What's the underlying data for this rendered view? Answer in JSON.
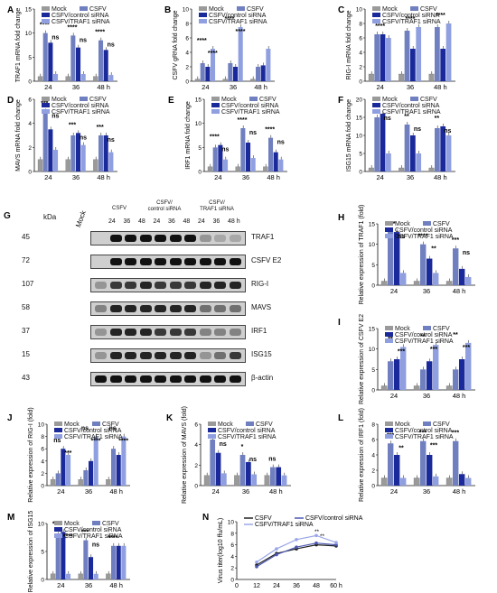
{
  "colors": {
    "mock": "#9a9a9a",
    "csfv": "#6f7fbf",
    "control_sirna": "#1b2a9a",
    "traf1_sirna": "#8f9fe0",
    "line_csfv": "#222222",
    "line_control": "#4b58b0",
    "line_traf1": "#9aa7e8"
  },
  "legend": [
    "Mock",
    "CSFV",
    "CSFV/control siRNA",
    "CSFV/TRAF1 siRNA"
  ],
  "blot": {
    "letter": "G",
    "kda_label": "kDa",
    "mock_label": "Mock",
    "groups": [
      "CSFV",
      "CSFV/\ncontrol siRNA",
      "CSFV/\nTRAF1 siRNA"
    ],
    "times": [
      "24",
      "36",
      "48",
      "24",
      "36",
      "48",
      "24",
      "36",
      "48 h"
    ],
    "rows": [
      {
        "mw": "45",
        "protein": "TRAF1"
      },
      {
        "mw": "72",
        "protein": "CSFV E2"
      },
      {
        "mw": "107",
        "protein": "RIG-I"
      },
      {
        "mw": "58",
        "protein": "MAVS"
      },
      {
        "mw": "37",
        "protein": "IRF1"
      },
      {
        "mw": "15",
        "protein": "ISG15"
      },
      {
        "mw": "43",
        "protein": "β-actin"
      }
    ]
  },
  "chart_data": [
    {
      "panel": "A",
      "type": "bar",
      "ylabel": "TRAF1 mRNA fold change",
      "ylim": [
        0,
        15
      ],
      "ticks": [
        0,
        5,
        10,
        15
      ],
      "categories": [
        "24",
        "36",
        "48 h"
      ],
      "series": [
        {
          "name": "Mock",
          "values": [
            1,
            1,
            1
          ]
        },
        {
          "name": "CSFV",
          "values": [
            10,
            9.5,
            8.5
          ]
        },
        {
          "name": "CSFV/control siRNA",
          "values": [
            8,
            7,
            6.5
          ]
        },
        {
          "name": "CSFV/TRAF1 siRNA",
          "values": [
            1.5,
            1.5,
            1.3
          ]
        }
      ],
      "sig": [
        "****",
        "ns",
        "****",
        "ns",
        "****",
        "ns"
      ]
    },
    {
      "panel": "B",
      "type": "bar",
      "ylabel": "CSFV gRNA fold change",
      "ylim": [
        0,
        10
      ],
      "ticks": [
        0,
        2,
        4,
        6,
        8,
        10
      ],
      "categories": [
        "24",
        "36",
        "48 h"
      ],
      "series": [
        {
          "name": "Mock",
          "values": [
            0.3,
            0.3,
            0.3
          ]
        },
        {
          "name": "CSFV",
          "values": [
            2.5,
            2.5,
            2
          ]
        },
        {
          "name": "CSFV/control siRNA",
          "values": [
            2,
            2,
            2.2
          ]
        },
        {
          "name": "CSFV/TRAF1 siRNA",
          "values": [
            4.5,
            7.5,
            4.5
          ]
        }
      ],
      "sig": [
        "****",
        "****",
        "****",
        "****"
      ]
    },
    {
      "panel": "C",
      "type": "bar",
      "ylabel": "RIG-I mRNA fold change",
      "ylim": [
        0,
        10
      ],
      "ticks": [
        0,
        2,
        4,
        6,
        8,
        10
      ],
      "categories": [
        "24",
        "36",
        "48 h"
      ],
      "series": [
        {
          "name": "Mock",
          "values": [
            1,
            1,
            1
          ]
        },
        {
          "name": "CSFV",
          "values": [
            6.5,
            7,
            7.5
          ]
        },
        {
          "name": "CSFV/control siRNA",
          "values": [
            6.5,
            4.5,
            4.5
          ]
        },
        {
          "name": "CSFV/TRAF1 siRNA",
          "values": [
            6,
            7.5,
            8
          ]
        }
      ],
      "sig": [
        "****",
        "****",
        "****"
      ]
    },
    {
      "panel": "D",
      "type": "bar",
      "ylabel": "MAVS mRNA fold change",
      "ylim": [
        0,
        6
      ],
      "ticks": [
        0,
        2,
        4,
        6
      ],
      "categories": [
        "24",
        "36",
        "48 h"
      ],
      "series": [
        {
          "name": "Mock",
          "values": [
            1,
            1,
            1
          ]
        },
        {
          "name": "CSFV",
          "values": [
            5,
            3,
            3
          ]
        },
        {
          "name": "CSFV/control siRNA",
          "values": [
            3.5,
            3.2,
            3
          ]
        },
        {
          "name": "CSFV/TRAF1 siRNA",
          "values": [
            1.8,
            2.2,
            1.6
          ]
        }
      ],
      "sig": [
        "***",
        "ns",
        "***",
        "ns",
        "***",
        "ns"
      ]
    },
    {
      "panel": "E",
      "type": "bar",
      "ylabel": "IRF1 mRNA fold change",
      "ylim": [
        0,
        15
      ],
      "ticks": [
        0,
        5,
        10,
        15
      ],
      "categories": [
        "24",
        "36",
        "48 h"
      ],
      "series": [
        {
          "name": "Mock",
          "values": [
            1,
            1,
            1
          ]
        },
        {
          "name": "CSFV",
          "values": [
            5,
            9,
            7
          ]
        },
        {
          "name": "CSFV/control siRNA",
          "values": [
            5.5,
            6,
            4
          ]
        },
        {
          "name": "CSFV/TRAF1 siRNA",
          "values": [
            2.5,
            2.8,
            2.5
          ]
        }
      ],
      "sig": [
        "****",
        "ns",
        "****",
        "ns",
        "****",
        "ns"
      ]
    },
    {
      "panel": "F",
      "type": "bar",
      "ylabel": "ISG15 mRNA fold change",
      "ylim": [
        0,
        20
      ],
      "ticks": [
        0,
        5,
        10,
        15,
        20
      ],
      "categories": [
        "24",
        "36",
        "48 h"
      ],
      "series": [
        {
          "name": "Mock",
          "values": [
            1,
            1,
            1
          ]
        },
        {
          "name": "CSFV",
          "values": [
            15,
            13,
            12
          ]
        },
        {
          "name": "CSFV/control siRNA",
          "values": [
            16,
            10,
            12.5
          ]
        },
        {
          "name": "CSFV/TRAF1 siRNA",
          "values": [
            5,
            5,
            10
          ]
        }
      ],
      "sig": [
        "***",
        "ns",
        "**",
        "ns",
        "**",
        "ns"
      ]
    },
    {
      "panel": "H",
      "type": "bar",
      "ylabel": "Relative expression of TRAF1 (fold)",
      "ylim": [
        0,
        15
      ],
      "ticks": [
        0,
        5,
        10,
        15
      ],
      "categories": [
        "24",
        "36",
        "48 h"
      ],
      "series": [
        {
          "name": "Mock",
          "values": [
            1,
            1,
            1
          ]
        },
        {
          "name": "CSFV",
          "values": [
            13,
            10,
            9
          ]
        },
        {
          "name": "CSFV/control siRNA",
          "values": [
            13,
            6.5,
            4
          ]
        },
        {
          "name": "CSFV/TRAF1 siRNA",
          "values": [
            3,
            3,
            2
          ]
        }
      ],
      "sig": [
        "****",
        "ns",
        "****",
        "**",
        "***",
        "ns"
      ]
    },
    {
      "panel": "I",
      "type": "bar",
      "ylabel": "Relative expression of CSFV E2",
      "ylim": [
        0,
        15
      ],
      "ticks": [
        0,
        5,
        10,
        15
      ],
      "categories": [
        "24",
        "36",
        "48 h"
      ],
      "series": [
        {
          "name": "Mock",
          "values": [
            1,
            1,
            1
          ]
        },
        {
          "name": "CSFV",
          "values": [
            7,
            5,
            5
          ]
        },
        {
          "name": "CSFV/control siRNA",
          "values": [
            7.5,
            7,
            7.5
          ]
        },
        {
          "name": "CSFV/TRAF1 siRNA",
          "values": [
            10.5,
            11,
            11.5
          ]
        }
      ],
      "sig": [
        "**",
        "***",
        "**",
        "***",
        "**",
        "***"
      ]
    },
    {
      "panel": "J",
      "type": "bar",
      "ylabel": "Relative expression of RIG-I (fold)",
      "ylim": [
        0,
        10
      ],
      "ticks": [
        0,
        2,
        4,
        6,
        8,
        10
      ],
      "categories": [
        "24",
        "36",
        "48 h"
      ],
      "series": [
        {
          "name": "Mock",
          "values": [
            1,
            1,
            1
          ]
        },
        {
          "name": "CSFV",
          "values": [
            2,
            2.5,
            6
          ]
        },
        {
          "name": "CSFV/control siRNA",
          "values": [
            6,
            4,
            5
          ]
        },
        {
          "name": "CSFV/TRAF1 siRNA",
          "values": [
            5,
            8,
            8
          ]
        }
      ],
      "sig": [
        "ns",
        "***",
        "ns",
        "****",
        "ns",
        "****"
      ]
    },
    {
      "panel": "K",
      "type": "bar",
      "ylabel": "Relative expression of MAVS (fold)",
      "ylim": [
        0,
        6
      ],
      "ticks": [
        0,
        2,
        4,
        6
      ],
      "categories": [
        "24",
        "36",
        "48 h"
      ],
      "series": [
        {
          "name": "Mock",
          "values": [
            1,
            1,
            1
          ]
        },
        {
          "name": "CSFV",
          "values": [
            4.5,
            3,
            1.8
          ]
        },
        {
          "name": "CSFV/control siRNA",
          "values": [
            3.2,
            2.3,
            1.8
          ]
        },
        {
          "name": "CSFV/TRAF1 siRNA",
          "values": [
            1.2,
            1.1,
            1
          ]
        }
      ],
      "sig": [
        "**",
        "ns",
        "*",
        "ns",
        "ns"
      ]
    },
    {
      "panel": "L",
      "type": "bar",
      "ylabel": "Relative expression of IRF1 (fold)",
      "ylim": [
        0,
        8
      ],
      "ticks": [
        0,
        2,
        4,
        6,
        8
      ],
      "categories": [
        "24",
        "36",
        "48 h"
      ],
      "series": [
        {
          "name": "Mock",
          "values": [
            1,
            1,
            1
          ]
        },
        {
          "name": "CSFV",
          "values": [
            5.5,
            5.8,
            5.8
          ]
        },
        {
          "name": "CSFV/control siRNA",
          "values": [
            4,
            4,
            1.5
          ]
        },
        {
          "name": "CSFV/TRAF1 siRNA",
          "values": [
            1,
            1.2,
            1
          ]
        }
      ],
      "sig": [
        "***",
        "**",
        "***",
        "***",
        "***"
      ]
    },
    {
      "panel": "M",
      "type": "bar",
      "ylabel": "Relative expression of ISG15",
      "ylim": [
        0,
        10
      ],
      "ticks": [
        0,
        5,
        10
      ],
      "categories": [
        "24",
        "36",
        "48 h"
      ],
      "series": [
        {
          "name": "Mock",
          "values": [
            1,
            1,
            1
          ]
        },
        {
          "name": "CSFV",
          "values": [
            8,
            7,
            6
          ]
        },
        {
          "name": "CSFV/control siRNA",
          "values": [
            8.5,
            4,
            6
          ]
        },
        {
          "name": "CSFV/TRAF1 siRNA",
          "values": [
            1,
            1,
            6
          ]
        }
      ],
      "sig": [
        "****",
        "****",
        "***",
        "ns",
        "****"
      ]
    },
    {
      "panel": "N",
      "type": "line",
      "ylabel": "Virus titer(log10 ffu/mL)",
      "xlabel": "",
      "ylim": [
        0,
        10
      ],
      "ticks": [
        0,
        2,
        4,
        6,
        8,
        10
      ],
      "xlim": [
        0,
        60
      ],
      "xticks": [
        "0",
        "12",
        "24",
        "36",
        "48",
        "60 h"
      ],
      "x": [
        12,
        24,
        36,
        48,
        60
      ],
      "series": [
        {
          "name": "CSFV",
          "values": [
            2.5,
            4.5,
            5.3,
            6,
            5.8
          ]
        },
        {
          "name": "CSFV/control siRNA",
          "values": [
            2.2,
            4.3,
            5.6,
            6.3,
            6
          ]
        },
        {
          "name": "CSFV/TRAF1 siRNA",
          "values": [
            3,
            5.3,
            6.9,
            7.6,
            6.4
          ]
        }
      ],
      "sig": [
        "**",
        "**"
      ]
    }
  ]
}
